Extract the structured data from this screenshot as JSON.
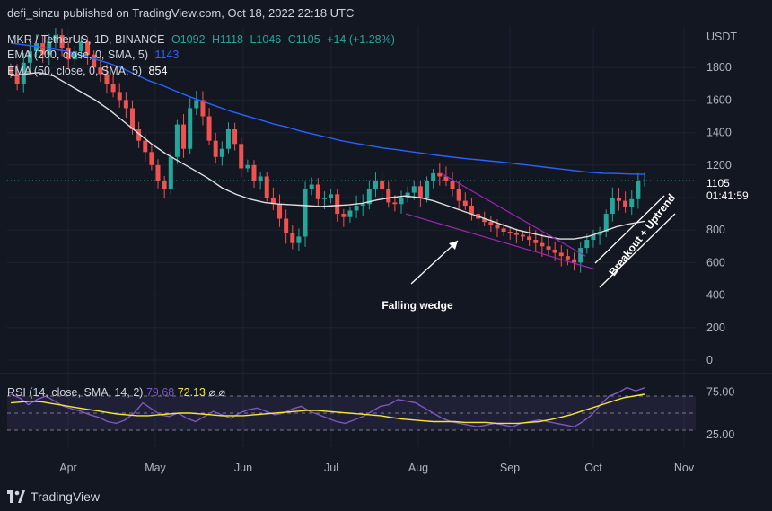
{
  "header": {
    "publisher_line": "defi_sinzu published on TradingView.com, Oct 18, 2022 22:18 UTC"
  },
  "legend": {
    "symbol": "MKR / TetherUS, 1D, BINANCE",
    "open": "O1092",
    "high": "H1118",
    "low": "L1046",
    "close": "C1105",
    "change": "+14 (+1.28%)",
    "ema200_label": "EMA (200, close, 0, SMA, 5)",
    "ema200_value": "1143",
    "ema50_label": "EMA (50, close, 0, SMA, 5)",
    "ema50_value": "854"
  },
  "price_tag": {
    "price": "1105",
    "countdown": "01:41:59"
  },
  "rsi_legend": {
    "label": "RSI (14, close, SMA, 14, 2)",
    "rsi_value": "79.68",
    "sma_value": "72.13",
    "extra": "⌀ ⌀"
  },
  "annotations": {
    "wedge_label": "Falling wedge",
    "breakout_label": "Breakout + Uptrend"
  },
  "footer": {
    "brand": "TradingView"
  },
  "colors": {
    "background": "#131722",
    "up": "#26a69a",
    "down": "#ef5350",
    "ema200": "#2962ff",
    "ema50": "#e0e0e0",
    "wedge": "#9c27b0",
    "rsi": "#7e57c2",
    "rsi_sma": "#f5e63a"
  },
  "chart_data": {
    "type": "candlestick",
    "title": "MKR / TetherUS, 1D, BINANCE",
    "y_axis_label": "USDT",
    "ylim": [
      -50,
      2050
    ],
    "y_ticks": [
      0,
      200,
      400,
      600,
      800,
      1000,
      1200,
      1400,
      1600,
      1800
    ],
    "x_ticks": [
      "Apr",
      "May",
      "Jun",
      "Jul",
      "Aug",
      "Sep",
      "Oct",
      "Nov"
    ],
    "grid": true,
    "price_closes": [
      1760,
      1700,
      1830,
      1900,
      1950,
      1880,
      1960,
      2000,
      1920,
      1850,
      1900,
      1960,
      1880,
      1800,
      1760,
      1700,
      1650,
      1600,
      1550,
      1420,
      1350,
      1280,
      1200,
      1100,
      1050,
      1250,
      1450,
      1300,
      1550,
      1600,
      1500,
      1350,
      1250,
      1300,
      1420,
      1330,
      1180,
      1200,
      1100,
      1130,
      1000,
      960,
      870,
      780,
      720,
      760,
      1050,
      1080,
      990,
      1000,
      1020,
      900,
      880,
      920,
      950,
      960,
      1050,
      1100,
      1050,
      970,
      960,
      1000,
      1030,
      1070,
      1000,
      1100,
      1150,
      1130,
      1100,
      1050,
      980,
      950,
      900,
      870,
      850,
      830,
      810,
      790,
      780,
      770,
      760,
      740,
      720,
      700,
      680,
      660,
      640,
      620,
      600,
      690,
      740,
      770,
      790,
      900,
      1000,
      980,
      940,
      990,
      1100,
      1105
    ],
    "ema200": [
      1950,
      1940,
      1928,
      1915,
      1900,
      1880,
      1855,
      1830,
      1800,
      1760,
      1720,
      1690,
      1655,
      1620,
      1590,
      1560,
      1530,
      1505,
      1480,
      1455,
      1435,
      1410,
      1390,
      1370,
      1350,
      1335,
      1320,
      1305,
      1295,
      1283,
      1272,
      1260,
      1250,
      1240,
      1232,
      1224,
      1215,
      1205,
      1195,
      1185,
      1175,
      1165,
      1156,
      1150,
      1148,
      1145,
      1143
    ],
    "ema50": [
      1750,
      1760,
      1770,
      1750,
      1700,
      1650,
      1600,
      1540,
      1470,
      1400,
      1330,
      1270,
      1220,
      1170,
      1120,
      1060,
      1020,
      990,
      970,
      960,
      955,
      950,
      945,
      950,
      955,
      965,
      985,
      1000,
      1010,
      1000,
      980,
      950,
      920,
      890,
      860,
      830,
      800,
      780,
      760,
      745,
      745,
      760,
      790,
      820,
      840,
      854
    ],
    "wedge_upper": [
      [
        1060,
        1150
      ],
      [
        1550,
        640
      ]
    ],
    "wedge_lower": [
      [
        940,
        900
      ],
      [
        1580,
        560
      ]
    ],
    "rsi": [
      72,
      68,
      60,
      66,
      70,
      64,
      58,
      55,
      52,
      48,
      45,
      40,
      38,
      42,
      50,
      62,
      55,
      48,
      46,
      50,
      44,
      40,
      46,
      52,
      48,
      44,
      50,
      54,
      56,
      52,
      48,
      50,
      55,
      58,
      52,
      48,
      44,
      40,
      38,
      42,
      46,
      52,
      58,
      60,
      66,
      64,
      62,
      56,
      50,
      44,
      40,
      38,
      36,
      34,
      36,
      38,
      36,
      34,
      38,
      40,
      42,
      40,
      38,
      36,
      34,
      40,
      48,
      60,
      70,
      74,
      80,
      76,
      79.68
    ],
    "rsi_sma": [
      62,
      63,
      64,
      63,
      61,
      59,
      57,
      55,
      53,
      51,
      49,
      48,
      47,
      47,
      48,
      49,
      50,
      50,
      49,
      48,
      47,
      47,
      47,
      48,
      49,
      50,
      51,
      52,
      53,
      53,
      52,
      51,
      50,
      49,
      48,
      47,
      45,
      43,
      42,
      41,
      40,
      40,
      40,
      39,
      39,
      39,
      38,
      38,
      38,
      39,
      40,
      42,
      45,
      48,
      52,
      56,
      60,
      64,
      68,
      70,
      72.13
    ],
    "rsi_ticks": [
      25,
      75
    ],
    "rsi_band": [
      30,
      70
    ]
  }
}
